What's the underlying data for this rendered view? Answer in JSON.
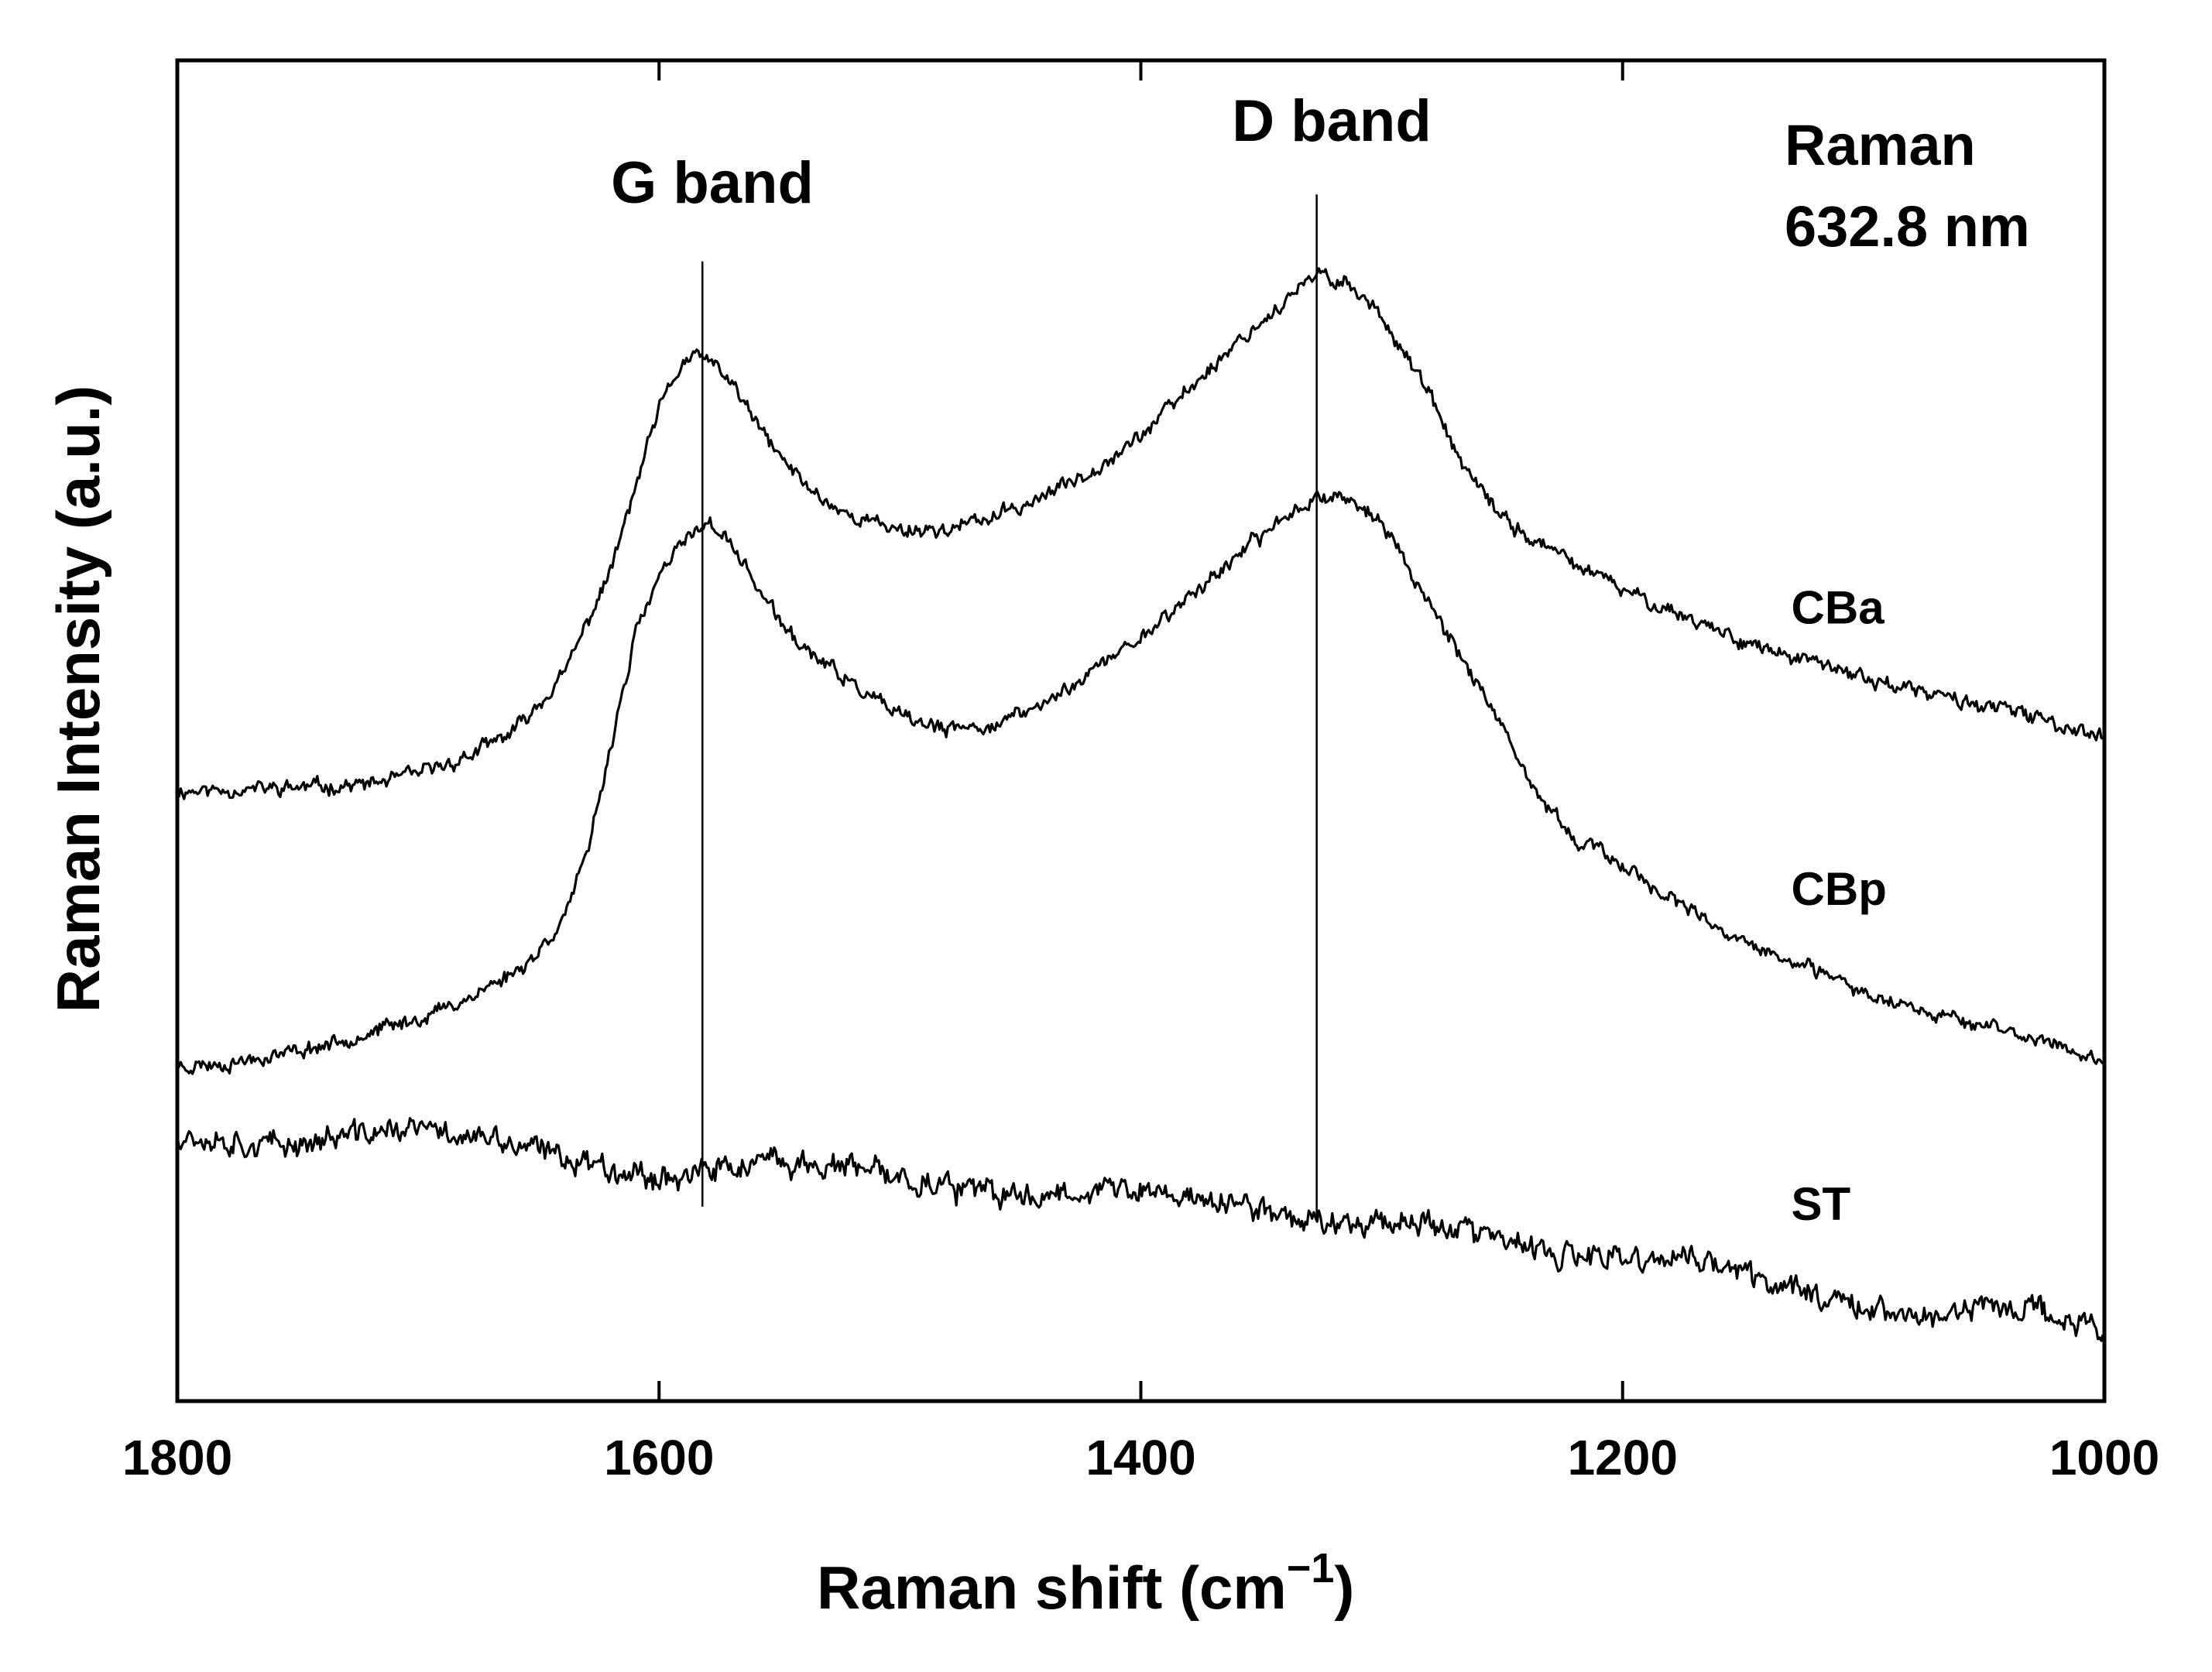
{
  "chart_data": {
    "type": "line",
    "title": "",
    "xlabel": "Raman shift (cm",
    "xlabel_sup": "−1",
    "xlabel_close": ")",
    "ylabel": "Raman Intensity (a.u.)",
    "xlim": [
      1800,
      1000
    ],
    "x_reversed": true,
    "ylim": [
      0,
      100
    ],
    "x_ticks": [
      1800,
      1600,
      1400,
      1200,
      1000
    ],
    "y_ticks_shown": false,
    "grid": false,
    "annotations": {
      "note_line1": "Raman",
      "note_line2": "632.8 nm",
      "vlines": [
        {
          "label": "G band",
          "x": 1582,
          "y_from": 14.5,
          "y_to": 85.0
        },
        {
          "label": "D band",
          "x": 1327,
          "y_from": 13.5,
          "y_to": 90.0
        }
      ]
    },
    "series": [
      {
        "name": "CBa",
        "label_x": 1130,
        "label_y": 58,
        "noise": 0.8,
        "seed": 11,
        "points": [
          [
            1800,
            45.5
          ],
          [
            1760,
            45.7
          ],
          [
            1720,
            46.0
          ],
          [
            1700,
            46.8
          ],
          [
            1680,
            48.0
          ],
          [
            1660,
            50.0
          ],
          [
            1640,
            54.0
          ],
          [
            1620,
            62.0
          ],
          [
            1610,
            68.0
          ],
          [
            1600,
            74.0
          ],
          [
            1590,
            77.5
          ],
          [
            1582,
            78.0
          ],
          [
            1570,
            76.0
          ],
          [
            1560,
            73.0
          ],
          [
            1550,
            70.5
          ],
          [
            1540,
            68.5
          ],
          [
            1530,
            67.0
          ],
          [
            1520,
            66.0
          ],
          [
            1500,
            65.0
          ],
          [
            1480,
            65.0
          ],
          [
            1460,
            66.0
          ],
          [
            1440,
            67.5
          ],
          [
            1420,
            69.5
          ],
          [
            1400,
            72.0
          ],
          [
            1380,
            75.5
          ],
          [
            1360,
            79.0
          ],
          [
            1340,
            82.0
          ],
          [
            1327,
            84.0
          ],
          [
            1315,
            83.5
          ],
          [
            1300,
            81.0
          ],
          [
            1290,
            78.0
          ],
          [
            1280,
            75.0
          ],
          [
            1270,
            71.0
          ],
          [
            1260,
            68.0
          ],
          [
            1250,
            66.0
          ],
          [
            1240,
            64.5
          ],
          [
            1220,
            62.5
          ],
          [
            1200,
            60.5
          ],
          [
            1180,
            59.0
          ],
          [
            1160,
            57.5
          ],
          [
            1140,
            56.0
          ],
          [
            1120,
            55.0
          ],
          [
            1100,
            54.0
          ],
          [
            1080,
            53.0
          ],
          [
            1060,
            52.3
          ],
          [
            1040,
            51.5
          ],
          [
            1020,
            50.5
          ],
          [
            1000,
            49.5
          ]
        ]
      },
      {
        "name": "CBp",
        "label_x": 1130,
        "label_y": 37,
        "noise": 0.8,
        "seed": 23,
        "points": [
          [
            1800,
            25.0
          ],
          [
            1780,
            25.2
          ],
          [
            1760,
            25.8
          ],
          [
            1740,
            26.5
          ],
          [
            1720,
            27.5
          ],
          [
            1700,
            28.5
          ],
          [
            1680,
            30.0
          ],
          [
            1660,
            32.0
          ],
          [
            1650,
            33.5
          ],
          [
            1640,
            36.0
          ],
          [
            1630,
            40.5
          ],
          [
            1620,
            49.0
          ],
          [
            1610,
            57.0
          ],
          [
            1600,
            61.5
          ],
          [
            1590,
            64.0
          ],
          [
            1582,
            65.5
          ],
          [
            1575,
            65.0
          ],
          [
            1565,
            62.5
          ],
          [
            1555,
            59.5
          ],
          [
            1545,
            57.0
          ],
          [
            1535,
            55.5
          ],
          [
            1520,
            53.5
          ],
          [
            1500,
            51.0
          ],
          [
            1480,
            50.0
          ],
          [
            1460,
            50.5
          ],
          [
            1440,
            52.0
          ],
          [
            1420,
            54.5
          ],
          [
            1400,
            57.0
          ],
          [
            1380,
            60.0
          ],
          [
            1360,
            63.0
          ],
          [
            1340,
            66.0
          ],
          [
            1327,
            67.5
          ],
          [
            1315,
            67.5
          ],
          [
            1300,
            65.5
          ],
          [
            1290,
            62.5
          ],
          [
            1280,
            59.5
          ],
          [
            1270,
            56.5
          ],
          [
            1260,
            53.5
          ],
          [
            1250,
            50.0
          ],
          [
            1240,
            46.5
          ],
          [
            1230,
            44.0
          ],
          [
            1220,
            42.0
          ],
          [
            1200,
            40.0
          ],
          [
            1180,
            37.5
          ],
          [
            1160,
            35.0
          ],
          [
            1140,
            33.5
          ],
          [
            1120,
            32.0
          ],
          [
            1100,
            30.5
          ],
          [
            1080,
            29.5
          ],
          [
            1060,
            28.5
          ],
          [
            1040,
            27.5
          ],
          [
            1020,
            26.5
          ],
          [
            1000,
            25.5
          ]
        ]
      },
      {
        "name": "ST",
        "label_x": 1130,
        "label_y": 13.5,
        "noise": 1.4,
        "seed": 37,
        "points": [
          [
            1800,
            20.0
          ],
          [
            1760,
            19.0
          ],
          [
            1720,
            20.0
          ],
          [
            1700,
            20.3
          ],
          [
            1680,
            19.8
          ],
          [
            1660,
            19.0
          ],
          [
            1640,
            18.3
          ],
          [
            1620,
            17.5
          ],
          [
            1600,
            16.7
          ],
          [
            1582,
            17.0
          ],
          [
            1560,
            17.7
          ],
          [
            1540,
            17.7
          ],
          [
            1520,
            17.3
          ],
          [
            1500,
            16.7
          ],
          [
            1480,
            16.0
          ],
          [
            1460,
            15.3
          ],
          [
            1440,
            15.4
          ],
          [
            1420,
            15.9
          ],
          [
            1400,
            15.6
          ],
          [
            1380,
            15.2
          ],
          [
            1360,
            14.6
          ],
          [
            1340,
            14.0
          ],
          [
            1327,
            13.3
          ],
          [
            1310,
            13.5
          ],
          [
            1290,
            13.5
          ],
          [
            1270,
            13.0
          ],
          [
            1250,
            12.0
          ],
          [
            1230,
            10.8
          ],
          [
            1210,
            10.6
          ],
          [
            1190,
            10.5
          ],
          [
            1170,
            10.7
          ],
          [
            1150,
            9.5
          ],
          [
            1130,
            8.5
          ],
          [
            1110,
            7.7
          ],
          [
            1090,
            6.6
          ],
          [
            1070,
            6.2
          ],
          [
            1050,
            7.1
          ],
          [
            1030,
            6.9
          ],
          [
            1015,
            6.0
          ],
          [
            1000,
            5.5
          ]
        ]
      }
    ]
  }
}
